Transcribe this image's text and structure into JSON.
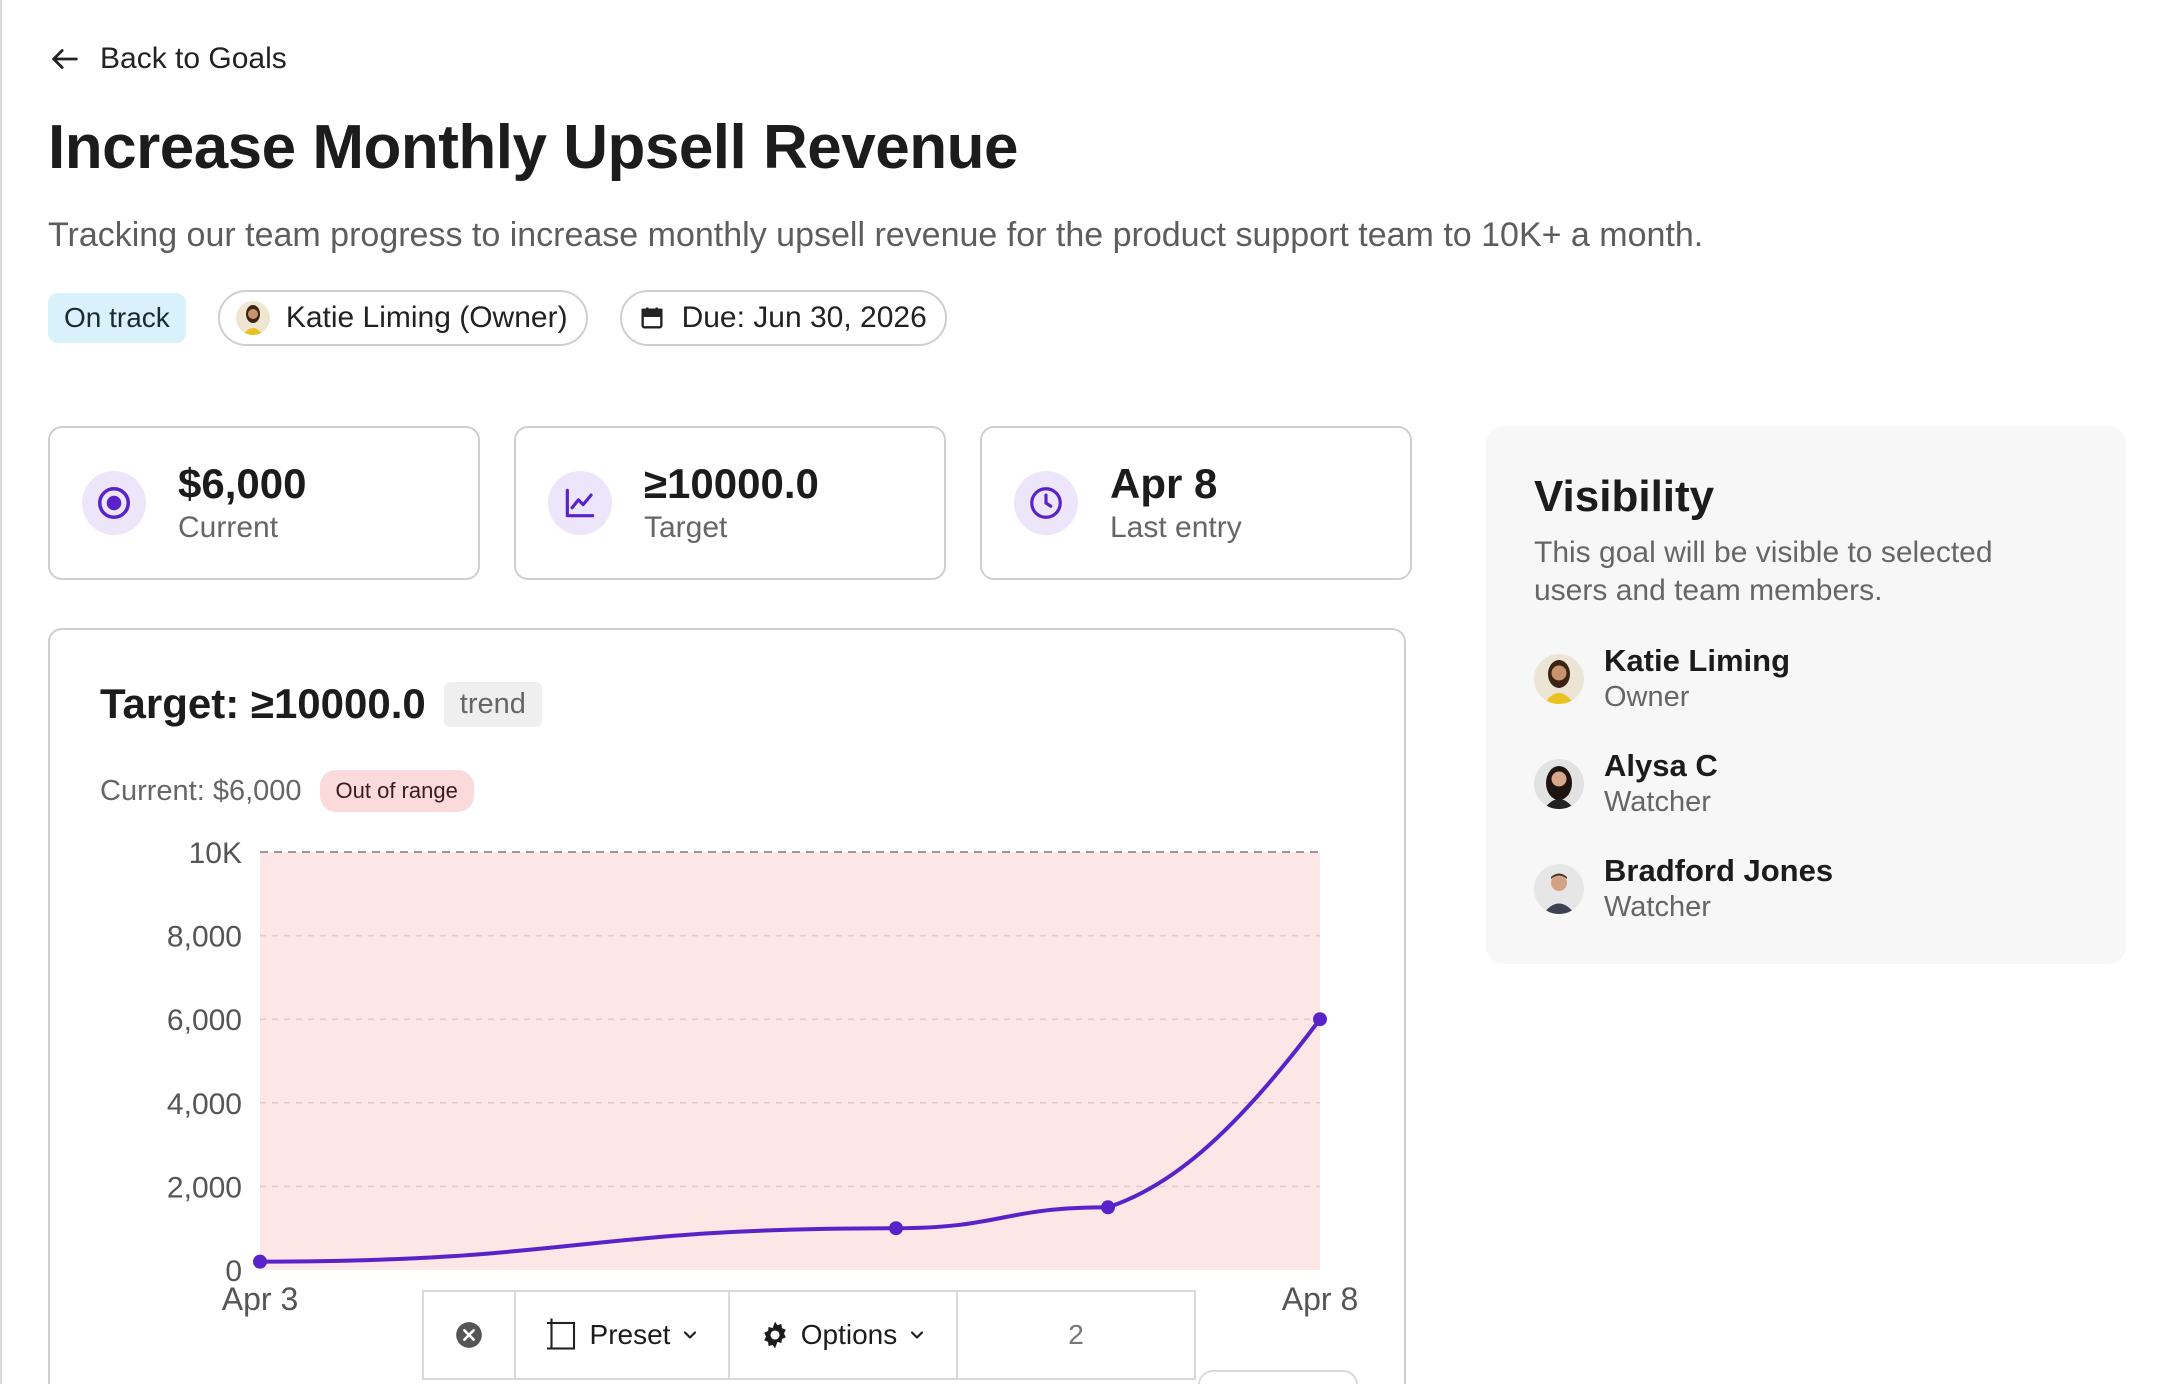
{
  "nav": {
    "back_label": "Back to Goals"
  },
  "goal": {
    "title": "Increase Monthly Upsell Revenue",
    "description": "Tracking our team progress to increase monthly upsell revenue for the product support team to 10K+ a month.",
    "status": "On track",
    "owner_pill": "Katie Liming (Owner)",
    "due": "Due: Jun 30, 2026"
  },
  "stats": {
    "current": {
      "value": "$6,000",
      "label": "Current",
      "icon": "target-icon"
    },
    "target": {
      "value": "≥10000.0",
      "label": "Target",
      "icon": "trend-icon"
    },
    "last_entry": {
      "value": "Apr 8",
      "label": "Last entry",
      "icon": "clock-icon"
    }
  },
  "chart_card": {
    "title": "Target: ≥10000.0",
    "mode_tag": "trend",
    "current_text": "Current: $6,000",
    "range_badge": "Out of range"
  },
  "chart_data": {
    "type": "line",
    "x": [
      "Apr 3",
      "Apr 6",
      "Apr 7",
      "Apr 8"
    ],
    "x_tick_labels_visible": [
      "Apr 3",
      "Apr 8"
    ],
    "y": [
      200,
      1000,
      1500,
      6000
    ],
    "ylim": [
      0,
      10000
    ],
    "y_ticks": [
      0,
      2000,
      4000,
      6000,
      8000,
      10000
    ],
    "y_tick_labels": [
      "0",
      "2,000",
      "4,000",
      "6,000",
      "8,000",
      "10K"
    ],
    "target_line": 10000,
    "grid": true,
    "colors": {
      "line": "#5a22c9",
      "band": "#fde6e6",
      "target_dash": "#9a9a9a"
    }
  },
  "toolbar": {
    "preset_label": "Preset",
    "options_label": "Options",
    "page_value": "2"
  },
  "visibility": {
    "title": "Visibility",
    "description": "This goal will be visible to selected users and team members.",
    "members": [
      {
        "name": "Katie Liming",
        "role": "Owner"
      },
      {
        "name": "Alysa C",
        "role": "Watcher"
      },
      {
        "name": "Bradford Jones",
        "role": "Watcher"
      }
    ]
  }
}
